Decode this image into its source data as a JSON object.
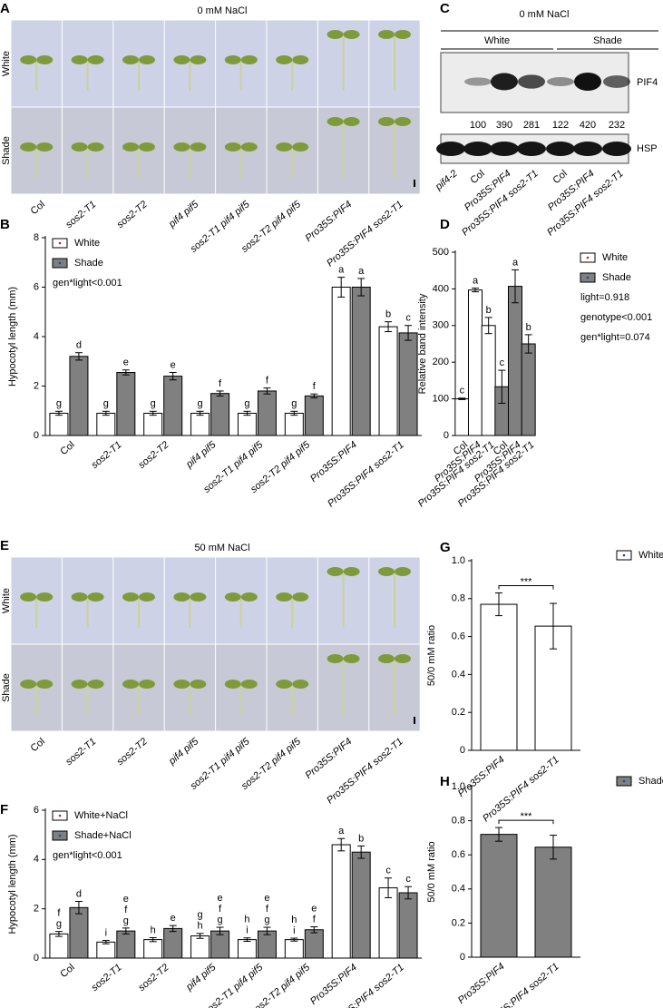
{
  "panels": {
    "A": {
      "letter": "A",
      "title": "0 mM NaCl",
      "rows": [
        "White",
        "Shade"
      ],
      "genotypes": [
        "Col",
        "sos2-T1",
        "sos2-T2",
        "pif4 pif5",
        "sos2-T1 pif4 pif5",
        "sos2-T2 pif4 pif5",
        "Pro35S:PIF4",
        "Pro35S:PIF4 sos2-T1"
      ]
    },
    "C": {
      "letter": "C",
      "title": "0 mM NaCl",
      "groups": [
        "White",
        "Shade"
      ],
      "proteins": [
        "PIF4",
        "HSP"
      ],
      "intensities": [
        100,
        390,
        281,
        122,
        420,
        232
      ],
      "lanes": [
        "pif4-2",
        "Col",
        "Pro35S:PIF4",
        "Pro35S:PIF4 sos2-T1",
        "Col",
        "Pro35S:PIF4",
        "Pro35S:PIF4 sos2-T1"
      ]
    },
    "E": {
      "letter": "E",
      "title": "50 mM NaCl",
      "rows": [
        "White",
        "Shade"
      ],
      "genotypes": [
        "Col",
        "sos2-T1",
        "sos2-T2",
        "pif4 pif5",
        "sos2-T1 pif4 pif5",
        "sos2-T2 pif4 pif5",
        "Pro35S:PIF4",
        "Pro35S:PIF4 sos2-T1"
      ]
    }
  },
  "chart_data": [
    {
      "type": "bar",
      "panel": "B",
      "ylabel": "Hypocotyl length (mm)",
      "legend": "top-left",
      "annotations": [
        "gen*light<0.001"
      ],
      "categories": [
        "Col",
        "sos2-T1",
        "sos2-T2",
        "pif4 pif5",
        "sos2-T1 pif4 pif5",
        "sos2-T2 pif4 pif5",
        "Pro35S:PIF4",
        "Pro35S:PIF4 sos2-T1"
      ],
      "ylim": [
        0,
        8
      ],
      "yticks": [
        0,
        2,
        4,
        6,
        8
      ],
      "series": [
        {
          "name": "White",
          "color": "#ffffff",
          "point_color": "#d7191c",
          "values": [
            0.9,
            0.9,
            0.9,
            0.9,
            0.9,
            0.9,
            6.0,
            4.4
          ],
          "errors": [
            0.08,
            0.08,
            0.08,
            0.08,
            0.08,
            0.08,
            0.4,
            0.2
          ],
          "letters": [
            [
              "g"
            ],
            [
              "g"
            ],
            [
              "g"
            ],
            [
              "g"
            ],
            [
              "g"
            ],
            [
              "g"
            ],
            [
              "a"
            ],
            [
              "b"
            ]
          ]
        },
        {
          "name": "Shade",
          "color": "#808080",
          "point_color": "#1f3fbf",
          "values": [
            3.2,
            2.55,
            2.4,
            1.7,
            1.8,
            1.6,
            6.0,
            4.15
          ],
          "errors": [
            0.15,
            0.1,
            0.15,
            0.1,
            0.12,
            0.08,
            0.35,
            0.3
          ],
          "letters": [
            [
              "d"
            ],
            [
              "e"
            ],
            [
              "e"
            ],
            [
              "f"
            ],
            [
              "f"
            ],
            [
              "f"
            ],
            [
              "a"
            ],
            [
              "c"
            ]
          ]
        }
      ]
    },
    {
      "type": "bar",
      "panel": "D",
      "ylabel": "Relative band intensity",
      "legend": "right",
      "annotations": [
        "light=0.918",
        "genotype<0.001",
        "gen*light=0.074"
      ],
      "categories": [
        "Col",
        "Pro35S:PIF4",
        "Pro35S:PIF4 sos2-T1",
        "Col",
        "Pro35S:PIF4",
        "Pro35S:PIF4 sos2-T1"
      ],
      "ylim": [
        0,
        500
      ],
      "yticks": [
        0,
        100,
        200,
        300,
        400,
        500
      ],
      "series": [
        {
          "name": "White",
          "color": "#ffffff",
          "point_color": "#d7191c",
          "values": [
            100,
            397,
            300,
            null,
            null,
            null
          ],
          "errors": [
            2,
            5,
            22,
            null,
            null,
            null
          ],
          "letters": [
            [
              "c"
            ],
            [
              "a"
            ],
            [
              "b"
            ],
            null,
            null,
            null
          ]
        },
        {
          "name": "Shade",
          "color": "#808080",
          "point_color": "#1f3fbf",
          "values": [
            null,
            null,
            null,
            133,
            407,
            250
          ],
          "errors": [
            null,
            null,
            null,
            45,
            45,
            25
          ],
          "letters": [
            null,
            null,
            null,
            [
              "c"
            ],
            [
              "a"
            ],
            [
              "b"
            ]
          ]
        }
      ]
    },
    {
      "type": "bar",
      "panel": "F",
      "ylabel": "Hypocotyl length (mm)",
      "legend": "top-left",
      "annotations": [
        "gen*light<0.001"
      ],
      "categories": [
        "Col",
        "sos2-T1",
        "sos2-T2",
        "pif4 pif5",
        "sos2-T1 pif4 pif5",
        "sos2-T2 pif4 pif5",
        "Pro35S:PIF4",
        "Pro35S:PIF4 sos2-T1"
      ],
      "ylim": [
        0,
        6
      ],
      "yticks": [
        0,
        2,
        4,
        6
      ],
      "series": [
        {
          "name": "White+NaCl",
          "color": "#ffffff",
          "point_color": "#d7191c",
          "values": [
            0.98,
            0.65,
            0.75,
            0.9,
            0.75,
            0.75,
            4.6,
            2.85
          ],
          "errors": [
            0.1,
            0.07,
            0.08,
            0.1,
            0.07,
            0.06,
            0.25,
            0.4
          ],
          "letters": [
            [
              "f",
              "g"
            ],
            [
              "i"
            ],
            [
              "h"
            ],
            [
              "g",
              "h"
            ],
            [
              "h",
              "i"
            ],
            [
              "h",
              "i"
            ],
            [
              "a"
            ],
            [
              "c"
            ]
          ]
        },
        {
          "name": "Shade+NaCl",
          "color": "#808080",
          "point_color": "#1f3fbf",
          "values": [
            2.05,
            1.1,
            1.2,
            1.1,
            1.1,
            1.15,
            4.3,
            2.65
          ],
          "errors": [
            0.25,
            0.12,
            0.12,
            0.15,
            0.15,
            0.12,
            0.25,
            0.25
          ],
          "letters": [
            [
              "d"
            ],
            [
              "e",
              "f",
              "g"
            ],
            [
              "e"
            ],
            [
              "e",
              "f",
              "g"
            ],
            [
              "e",
              "f",
              "g"
            ],
            [
              "e",
              "f"
            ],
            [
              "b"
            ],
            [
              "c"
            ]
          ]
        }
      ]
    },
    {
      "type": "bar",
      "panel": "G",
      "ylabel": "50/0 mM ratio",
      "legend": "outside-right",
      "significance": "***",
      "categories": [
        "Pro35S:PIF4",
        "Pro35S:PIF4 sos2-T1"
      ],
      "ylim": [
        0,
        1
      ],
      "yticks": [
        0,
        0.2,
        0.4,
        0.6,
        0.8,
        {
          "value": 1,
          "label": "1.0"
        }
      ],
      "series": [
        {
          "name": "White",
          "color": "#ffffff",
          "point_color": "#1f3fbf",
          "values": [
            0.77,
            0.655
          ],
          "errors": [
            0.06,
            0.12
          ]
        }
      ]
    },
    {
      "type": "bar",
      "panel": "H",
      "ylabel": "50/0 mM ratio",
      "legend": "outside-right",
      "significance": "***",
      "categories": [
        "Pro35S:PIF4",
        "Pro35S:PIF4 sos2-T1"
      ],
      "ylim": [
        0,
        1
      ],
      "yticks": [
        0,
        0.2,
        0.4,
        0.6,
        0.8,
        {
          "value": 1,
          "label": "1.0"
        }
      ],
      "series": [
        {
          "name": "Shade",
          "color": "#808080",
          "point_color": "#1f3fbf",
          "values": [
            0.72,
            0.645
          ],
          "errors": [
            0.04,
            0.07
          ]
        }
      ]
    }
  ]
}
